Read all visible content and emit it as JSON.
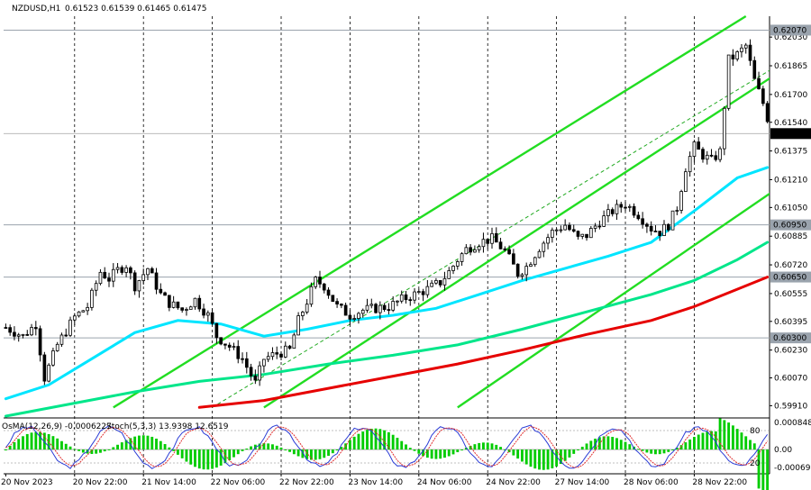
{
  "header": {
    "title": "NZDUSD,H1",
    "quote": "0.61523 0.61539 0.61465 0.61475"
  },
  "indicator": {
    "osma_label": "OsMA(12,26,9) -0.0006227",
    "stoch_label": "Stoch(5,3,3) 13.9398 12.6519"
  },
  "chart_data": {
    "type": "candlestick",
    "symbol": "NZDUSD",
    "timeframe": "H1",
    "y_ticks": [
      "0.62030",
      "0.61865",
      "0.61700",
      "0.61540",
      "0.61375",
      "0.61210",
      "0.61050",
      "0.60885",
      "0.60720",
      "0.60555",
      "0.60395",
      "0.60230",
      "0.60070",
      "0.59910"
    ],
    "levels": [
      {
        "label": "0.62070",
        "value": 0.6207
      },
      {
        "label": "0.60950",
        "value": 0.6095
      },
      {
        "label": "0.60650",
        "value": 0.6065
      },
      {
        "label": "0.60300",
        "value": 0.603
      }
    ],
    "current_price": {
      "label": "0.61475",
      "value": 0.61475
    },
    "x_ticks": [
      "20 Nov 2023",
      "20 Nov 22:00",
      "21 Nov 14:00",
      "22 Nov 06:00",
      "22 Nov 22:00",
      "23 Nov 14:00",
      "24 Nov 06:00",
      "24 Nov 22:00",
      "27 Nov 14:00",
      "28 Nov 06:00",
      "28 Nov 22:00"
    ],
    "x_tick_index": [
      0,
      16,
      32,
      48,
      64,
      80,
      96,
      112,
      128,
      144,
      160
    ],
    "num_bars": 178,
    "candles_close_path": [
      [
        0,
        0.6036
      ],
      [
        4,
        0.6031
      ],
      [
        7,
        0.6038
      ],
      [
        9,
        0.6007
      ],
      [
        12,
        0.6026
      ],
      [
        16,
        0.6042
      ],
      [
        19,
        0.6048
      ],
      [
        22,
        0.6068
      ],
      [
        24,
        0.6064
      ],
      [
        26,
        0.6069
      ],
      [
        28,
        0.6072
      ],
      [
        30,
        0.606
      ],
      [
        33,
        0.607
      ],
      [
        36,
        0.6055
      ],
      [
        38,
        0.605
      ],
      [
        41,
        0.6046
      ],
      [
        44,
        0.6052
      ],
      [
        47,
        0.6043
      ],
      [
        49,
        0.6031
      ],
      [
        52,
        0.6025
      ],
      [
        55,
        0.6018
      ],
      [
        58,
        0.6004
      ],
      [
        60,
        0.6018
      ],
      [
        63,
        0.6021
      ],
      [
        66,
        0.6023
      ],
      [
        68,
        0.604
      ],
      [
        70,
        0.6051
      ],
      [
        72,
        0.6063
      ],
      [
        74,
        0.606
      ],
      [
        77,
        0.6048
      ],
      [
        80,
        0.6043
      ],
      [
        83,
        0.6046
      ],
      [
        86,
        0.6047
      ],
      [
        89,
        0.6048
      ],
      [
        92,
        0.6052
      ],
      [
        95,
        0.6055
      ],
      [
        98,
        0.6058
      ],
      [
        101,
        0.6062
      ],
      [
        103,
        0.6068
      ],
      [
        105,
        0.6075
      ],
      [
        107,
        0.6081
      ],
      [
        110,
        0.6085
      ],
      [
        113,
        0.6087
      ],
      [
        116,
        0.608
      ],
      [
        119,
        0.6067
      ],
      [
        121,
        0.6071
      ],
      [
        124,
        0.6082
      ],
      [
        127,
        0.6091
      ],
      [
        130,
        0.6095
      ],
      [
        133,
        0.6087
      ],
      [
        135,
        0.6089
      ],
      [
        138,
        0.6097
      ],
      [
        141,
        0.6103
      ],
      [
        144,
        0.6107
      ],
      [
        147,
        0.6101
      ],
      [
        150,
        0.6093
      ],
      [
        152,
        0.6091
      ],
      [
        154,
        0.6095
      ],
      [
        156,
        0.6105
      ],
      [
        158,
        0.6128
      ],
      [
        160,
        0.614
      ],
      [
        162,
        0.6135
      ],
      [
        164,
        0.6132
      ],
      [
        166,
        0.6137
      ],
      [
        168,
        0.619
      ],
      [
        170,
        0.6193
      ],
      [
        172,
        0.6198
      ],
      [
        174,
        0.6178
      ],
      [
        176,
        0.6165
      ],
      [
        178,
        0.6148
      ]
    ],
    "moving_averages": [
      {
        "color": "#00e5ff",
        "points": [
          [
            0,
            0.5995
          ],
          [
            10,
            0.6003
          ],
          [
            20,
            0.6018
          ],
          [
            30,
            0.6033
          ],
          [
            40,
            0.604
          ],
          [
            50,
            0.6038
          ],
          [
            60,
            0.6031
          ],
          [
            70,
            0.6035
          ],
          [
            80,
            0.604
          ],
          [
            90,
            0.6043
          ],
          [
            100,
            0.6047
          ],
          [
            110,
            0.6055
          ],
          [
            120,
            0.6063
          ],
          [
            130,
            0.607
          ],
          [
            140,
            0.6077
          ],
          [
            150,
            0.6085
          ],
          [
            160,
            0.6103
          ],
          [
            170,
            0.6122
          ],
          [
            177,
            0.6128
          ]
        ]
      },
      {
        "color": "#00e68a",
        "points": [
          [
            0,
            0.5985
          ],
          [
            15,
            0.5992
          ],
          [
            30,
            0.5999
          ],
          [
            45,
            0.6005
          ],
          [
            60,
            0.6009
          ],
          [
            75,
            0.6015
          ],
          [
            90,
            0.602
          ],
          [
            105,
            0.6026
          ],
          [
            120,
            0.6035
          ],
          [
            135,
            0.6045
          ],
          [
            150,
            0.6055
          ],
          [
            160,
            0.6063
          ],
          [
            170,
            0.6075
          ],
          [
            177,
            0.6085
          ]
        ]
      },
      {
        "color": "#e60000",
        "points": [
          [
            45,
            0.599
          ],
          [
            60,
            0.5994
          ],
          [
            75,
            0.6001
          ],
          [
            90,
            0.6008
          ],
          [
            105,
            0.6015
          ],
          [
            120,
            0.6023
          ],
          [
            135,
            0.6032
          ],
          [
            150,
            0.604
          ],
          [
            160,
            0.6048
          ],
          [
            170,
            0.6058
          ],
          [
            177,
            0.6065
          ]
        ]
      }
    ],
    "channel_lines": [
      {
        "color": "#22dd22",
        "points": [
          [
            25,
            0.599
          ],
          [
            172,
            0.6215
          ]
        ]
      },
      {
        "color": "#22dd22",
        "points": [
          [
            60,
            0.599
          ],
          [
            178,
            0.618
          ]
        ]
      },
      {
        "color": "#22dd22",
        "points": [
          [
            105,
            0.599
          ],
          [
            220,
            0.6185
          ]
        ]
      },
      {
        "color": "#22aa22",
        "dashed": true,
        "points": [
          [
            48,
            0.599
          ],
          [
            205,
            0.6225
          ]
        ]
      }
    ],
    "osma_range": [
      -0.000692,
      0.0008483
    ],
    "osma_labels": [
      "0.0008483",
      "0.00",
      "-0.000692"
    ],
    "stoch_labels": [
      "80",
      "20"
    ],
    "ylim": [
      0.5985,
      0.6215
    ]
  }
}
